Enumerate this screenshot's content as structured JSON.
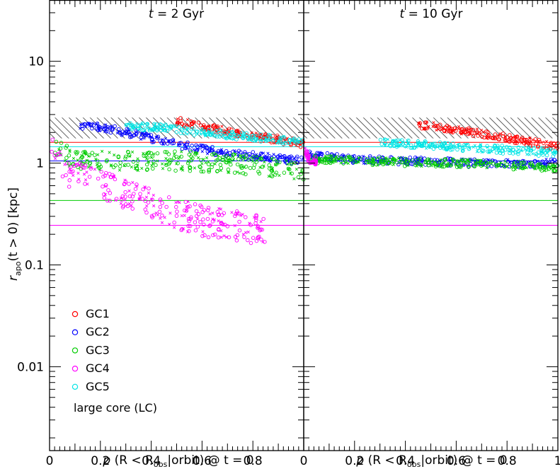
{
  "chart_data": {
    "type": "scatter",
    "y_scale": "log",
    "ylim": [
      0.0015,
      40
    ],
    "xlim": [
      0,
      1
    ],
    "ylabel": "r_apo(t>0) [kpc]",
    "xlabel": "p(R<R_obs|orbit) @ t=0",
    "x_ticks": [
      "0",
      "0.2",
      "0.4",
      "0.6",
      "0.8",
      "1"
    ],
    "y_ticks": [
      "0.01",
      "0.1",
      "1",
      "10"
    ],
    "y_tick_values": [
      0.01,
      0.1,
      1,
      10
    ],
    "hatched_band": [
      1.75,
      2.8
    ],
    "legend_extra": "large core (LC)",
    "series": [
      {
        "name": "GC1",
        "color": "#ff0000",
        "ref_line": 1.6
      },
      {
        "name": "GC2",
        "color": "#0000ff",
        "ref_line": 1.05
      },
      {
        "name": "GC3",
        "color": "#00cc00",
        "ref_line": 0.43
      },
      {
        "name": "GC4",
        "color": "#ff00ff",
        "ref_line": 0.245
      },
      {
        "name": "GC5",
        "color": "#00e5e5",
        "ref_line": 1.45
      }
    ],
    "panels": [
      {
        "title": "t = 2 Gyr",
        "trends": [
          {
            "series": "GC1",
            "points": [
              [
                0.5,
                2.6
              ],
              [
                0.6,
                2.3
              ],
              [
                0.7,
                2.05
              ],
              [
                0.8,
                1.85
              ],
              [
                0.9,
                1.7
              ],
              [
                1.0,
                1.55
              ]
            ]
          },
          {
            "series": "GC2",
            "points": [
              [
                0.12,
                2.4
              ],
              [
                0.25,
                2.15
              ],
              [
                0.4,
                1.75
              ],
              [
                0.55,
                1.45
              ],
              [
                0.7,
                1.25
              ],
              [
                0.85,
                1.15
              ],
              [
                1.0,
                1.05
              ]
            ]
          },
          {
            "series": "GC3",
            "points": [
              [
                0.02,
                1.5
              ],
              [
                0.05,
                1.25
              ],
              [
                0.1,
                1.1
              ],
              [
                0.3,
                1.05
              ],
              [
                0.5,
                1.05
              ],
              [
                0.7,
                1.0
              ],
              [
                0.9,
                0.9
              ],
              [
                1.0,
                0.8
              ]
            ]
          },
          {
            "series": "GC4",
            "points": [
              [
                0.005,
                1.7
              ],
              [
                0.02,
                1.2
              ],
              [
                0.05,
                0.85
              ],
              [
                0.1,
                0.75
              ],
              [
                0.2,
                0.6
              ],
              [
                0.3,
                0.5
              ],
              [
                0.45,
                0.35
              ],
              [
                0.6,
                0.27
              ],
              [
                0.85,
                0.22
              ]
            ]
          },
          {
            "series": "GC5",
            "points": [
              [
                0.3,
                2.3
              ],
              [
                0.45,
                2.2
              ],
              [
                0.6,
                2.0
              ],
              [
                0.75,
                1.85
              ],
              [
                0.9,
                1.7
              ],
              [
                1.0,
                1.6
              ]
            ]
          }
        ]
      },
      {
        "title": "t = 10 Gyr",
        "trends": [
          {
            "series": "GC1",
            "points": [
              [
                0.45,
                2.4
              ],
              [
                0.6,
                2.15
              ],
              [
                0.75,
                1.85
              ],
              [
                0.9,
                1.6
              ],
              [
                1.0,
                1.45
              ]
            ]
          },
          {
            "series": "GC2",
            "points": [
              [
                0.02,
                1.2
              ],
              [
                0.2,
                1.08
              ],
              [
                0.4,
                1.05
              ],
              [
                0.6,
                1.02
              ],
              [
                0.8,
                1.0
              ],
              [
                1.0,
                1.0
              ]
            ]
          },
          {
            "series": "GC3",
            "points": [
              [
                0.02,
                1.1
              ],
              [
                0.2,
                1.05
              ],
              [
                0.4,
                1.02
              ],
              [
                0.6,
                1.0
              ],
              [
                0.8,
                0.95
              ],
              [
                1.0,
                0.9
              ]
            ]
          },
          {
            "series": "GC4",
            "points": [
              [
                0.005,
                1.3
              ],
              [
                0.02,
                1.1
              ],
              [
                0.05,
                1.05
              ]
            ]
          },
          {
            "series": "GC5",
            "points": [
              [
                0.3,
                1.6
              ],
              [
                0.5,
                1.5
              ],
              [
                0.7,
                1.4
              ],
              [
                0.9,
                1.3
              ],
              [
                1.0,
                1.25
              ]
            ]
          }
        ]
      }
    ]
  },
  "labels": {
    "panel1_t": "t",
    "panel1_rest": " = 2 Gyr",
    "panel2_t": "t",
    "panel2_rest": " = 10 Gyr",
    "y_r": "r",
    "y_sub": "apo",
    "y_rest": "(t > 0)  [kpc]",
    "x_p": "p",
    "x_open": " (R < R",
    "x_sub": "obs",
    "x_close": "|orbit)  @  t = 0"
  }
}
